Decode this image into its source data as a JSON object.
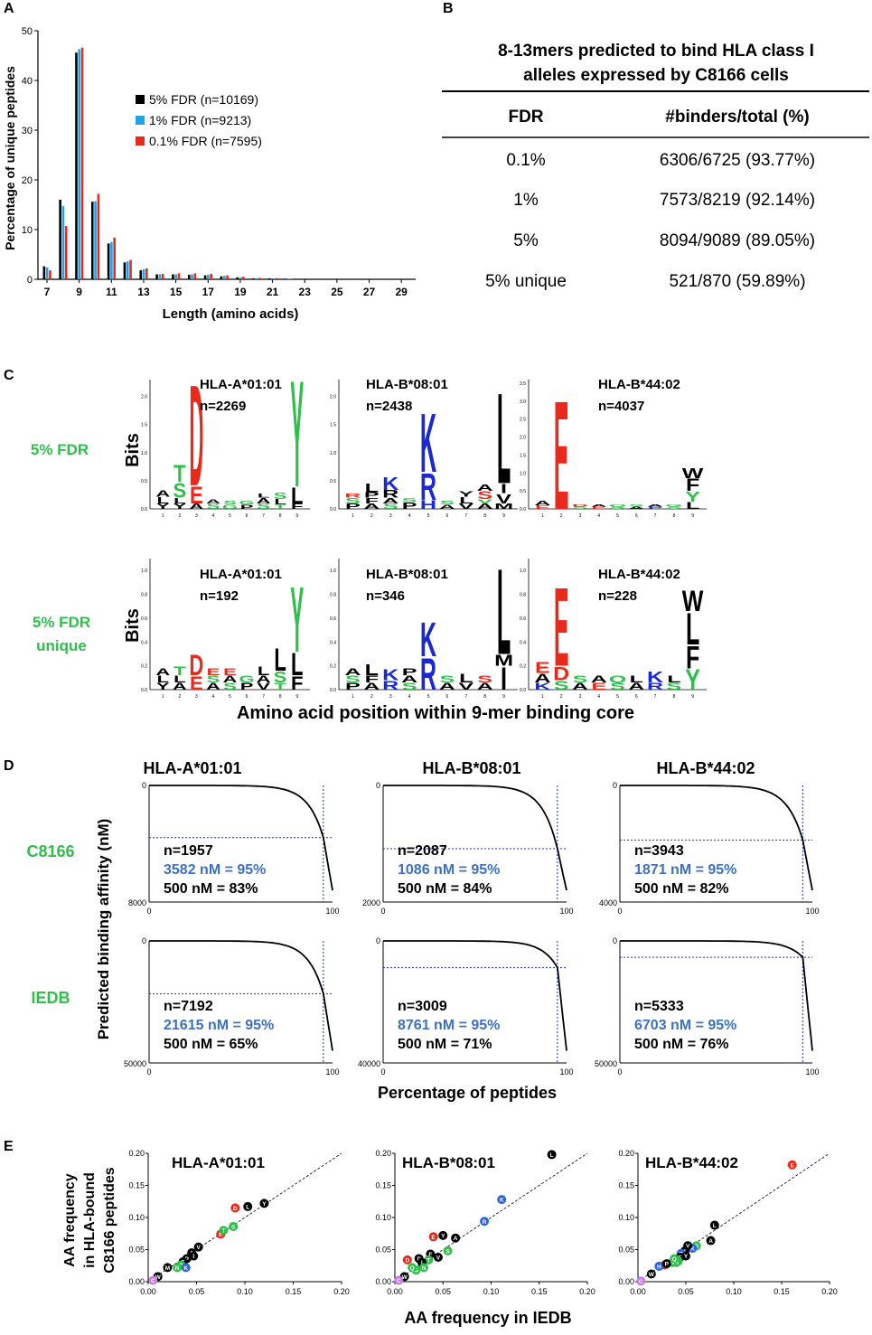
{
  "colors": {
    "series_5": "#000000",
    "series_1": "#1fa3e8",
    "series_01": "#e8291c",
    "green_label": "#2ec04b",
    "blue_text": "#3d6fc8",
    "logo_red": "#e8291c",
    "logo_blue": "#1a29d6",
    "logo_green": "#2ec04b",
    "logo_black": "#000000",
    "guide_blue": "#1a29d6"
  },
  "panels": {
    "A": {
      "letter": "A",
      "chart_data": {
        "type": "bar",
        "xlabel": "Length (amino acids)",
        "ylabel": "Percentage of unique peptides",
        "ylim": [
          0,
          50
        ],
        "yticks": [
          "0",
          "10",
          "20",
          "30",
          "40",
          "50"
        ],
        "xticklabels": [
          "7",
          "9",
          "11",
          "13",
          "15",
          "17",
          "19",
          "21",
          "23",
          "25",
          "27",
          "29"
        ],
        "categories": [
          7,
          8,
          9,
          10,
          11,
          12,
          13,
          14,
          15,
          16,
          17,
          18,
          19,
          20,
          21,
          22
        ],
        "series": [
          {
            "name": "5% FDR (n=10169)",
            "values": [
              2.6,
              16,
              45.6,
              15.6,
              7.2,
              3.4,
              1.8,
              1.0,
              1.0,
              0.9,
              0.8,
              0.6,
              0.4,
              0.2,
              0.2,
              0.1
            ]
          },
          {
            "name": "1% FDR (n=9213)",
            "values": [
              2.4,
              14.7,
              46.3,
              15.7,
              7.5,
              3.6,
              2.0,
              1.0,
              1.0,
              1.0,
              0.9,
              0.7,
              0.4,
              0.2,
              0.2,
              0.1
            ]
          },
          {
            "name": "0.1% FDR (n=7595)",
            "values": [
              1.8,
              10.7,
              46.6,
              17.2,
              8.4,
              3.9,
              2.2,
              1.1,
              1.2,
              1.2,
              1.1,
              0.8,
              0.5,
              0.3,
              0.2,
              0.1
            ]
          }
        ]
      }
    },
    "B": {
      "letter": "B",
      "title_line1": "8-13mers predicted to bind HLA class I",
      "title_line2": "alleles expressed by C8166 cells",
      "col_fdr": "FDR",
      "col_binders": "#binders/total (%)",
      "rows": [
        {
          "fdr": "0.1%",
          "value": "6306/6725 (93.77%)"
        },
        {
          "fdr": "1%",
          "value": "7573/8219 (92.14%)"
        },
        {
          "fdr": "5%",
          "value": "8094/9089 (89.05%)"
        },
        {
          "fdr": "5% unique",
          "value": "521/870 (59.89%)"
        }
      ]
    },
    "C": {
      "letter": "C",
      "row_labels": [
        "5% FDR",
        "5% FDR\nunique"
      ],
      "row_label_1": "5% FDR",
      "row_label_2a": "5% FDR",
      "row_label_2b": "unique",
      "bits": "Bits",
      "xlabel": "Amino acid position within 9-mer binding core",
      "positions": [
        "1",
        "2",
        "3",
        "4",
        "5",
        "6",
        "7",
        "8",
        "9"
      ],
      "logos_top": [
        {
          "allele": "HLA-A*01:01",
          "n": "n=2269",
          "yticks": [
            "0.0",
            "0.5",
            "1.0",
            "1.5",
            "2.0"
          ],
          "ymax": 2.3
        },
        {
          "allele": "HLA-B*08:01",
          "n": "n=2438",
          "yticks": [
            "0.0",
            "0.5",
            "1.0",
            "1.5",
            "2.0"
          ],
          "ymax": 2.3
        },
        {
          "allele": "HLA-B*44:02",
          "n": "n=4037",
          "yticks": [
            "0.0",
            "0.5",
            "1.0",
            "1.5",
            "2.0",
            "2.5",
            "3.0",
            "3.5"
          ],
          "ymax": 3.6
        }
      ],
      "logos_bottom": [
        {
          "allele": "HLA-A*01:01",
          "n": "n=192",
          "yticks": [
            "0.0",
            "0.2",
            "0.4",
            "0.6",
            "0.8",
            "1.0"
          ],
          "ymax": 1.1
        },
        {
          "allele": "HLA-B*08:01",
          "n": "n=346",
          "yticks": [
            "0.0",
            "0.2",
            "0.4",
            "0.6",
            "0.8",
            "1.0"
          ],
          "ymax": 1.1
        },
        {
          "allele": "HLA-B*44:02",
          "n": "n=228",
          "yticks": [
            "0.0",
            "0.2",
            "0.4",
            "0.6",
            "0.8",
            "1.0"
          ],
          "ymax": 1.1
        }
      ]
    },
    "D": {
      "letter": "D",
      "ylabel": "Predicted binding affinity (nM)",
      "xlabel": "Percentage of peptides",
      "row_label_1": "C8166",
      "row_label_2": "IEDB",
      "alleles": [
        "HLA-A*01:01",
        "HLA-B*08:01",
        "HLA-B*44:02"
      ],
      "plots": [
        {
          "row": 0,
          "col": 0,
          "ymax": 8000,
          "ymax_label": "8000",
          "n": "n=1957",
          "p95": "3582 nM = 95%",
          "p500": "500 nM = 83%",
          "threshold_nm": 3582
        },
        {
          "row": 0,
          "col": 1,
          "ymax": 2000,
          "ymax_label": "2000",
          "n": "n=2087",
          "p95": "1086 nM = 95%",
          "p500": "500 nM = 84%",
          "threshold_nm": 1086
        },
        {
          "row": 0,
          "col": 2,
          "ymax": 4000,
          "ymax_label": "4000",
          "n": "n=3943",
          "p95": "1871 nM = 95%",
          "p500": "500 nM = 82%",
          "threshold_nm": 1871
        },
        {
          "row": 1,
          "col": 0,
          "ymax": 50000,
          "ymax_label": "50000",
          "n": "n=7192",
          "p95": "21615 nM = 95%",
          "p500": "500 nM = 65%",
          "threshold_nm": 21615
        },
        {
          "row": 1,
          "col": 1,
          "ymax": 40000,
          "ymax_label": "40000",
          "n": "n=3009",
          "p95": "8761 nM = 95%",
          "p500": "500 nM = 71%",
          "threshold_nm": 8761
        },
        {
          "row": 1,
          "col": 2,
          "ymax": 50000,
          "ymax_label": "50000",
          "n": "n=5333",
          "p95": "6703 nM = 95%",
          "p500": "500 nM = 76%",
          "threshold_nm": 6703
        }
      ],
      "xtick_0": "0",
      "xtick_100": "100",
      "ytick_0": "0"
    },
    "E": {
      "letter": "E",
      "ylabel_1": "AA frequency",
      "ylabel_2": "in HLA-bound",
      "ylabel_3": "C8166 peptides",
      "xlabel": "AA frequency in IEDB",
      "ticks": [
        "0.00",
        "0.05",
        "0.10",
        "0.15",
        "0.20"
      ],
      "chart_data": {
        "type": "scatter",
        "xlim": [
          0,
          0.2
        ],
        "ylim": [
          0,
          0.2
        ],
        "plots": [
          {
            "title": "HLA-A*01:01",
            "points": [
              {
                "aa": "D",
                "x": 0.09,
                "y": 0.115,
                "c": "red"
              },
              {
                "aa": "L",
                "x": 0.103,
                "y": 0.117,
                "c": "black"
              },
              {
                "aa": "Y",
                "x": 0.12,
                "y": 0.122,
                "c": "black"
              },
              {
                "aa": "E",
                "x": 0.075,
                "y": 0.074,
                "c": "red"
              },
              {
                "aa": "T",
                "x": 0.078,
                "y": 0.08,
                "c": "green"
              },
              {
                "aa": "S",
                "x": 0.088,
                "y": 0.086,
                "c": "green"
              },
              {
                "aa": "V",
                "x": 0.052,
                "y": 0.054,
                "c": "black"
              },
              {
                "aa": "A",
                "x": 0.045,
                "y": 0.045,
                "c": "black"
              },
              {
                "aa": "I",
                "x": 0.047,
                "y": 0.04,
                "c": "black"
              },
              {
                "aa": "P",
                "x": 0.04,
                "y": 0.036,
                "c": "black"
              },
              {
                "aa": "F",
                "x": 0.036,
                "y": 0.031,
                "c": "black"
              },
              {
                "aa": "G",
                "x": 0.034,
                "y": 0.026,
                "c": "green"
              },
              {
                "aa": "K",
                "x": 0.039,
                "y": 0.022,
                "c": "blue"
              },
              {
                "aa": "N",
                "x": 0.03,
                "y": 0.022,
                "c": "green"
              },
              {
                "aa": "M",
                "x": 0.02,
                "y": 0.022,
                "c": "black"
              },
              {
                "aa": "W",
                "x": 0.01,
                "y": 0.008,
                "c": "black"
              },
              {
                "aa": "C",
                "x": 0.005,
                "y": 0.002,
                "c": "violet"
              }
            ]
          },
          {
            "title": "HLA-B*08:01",
            "points": [
              {
                "aa": "L",
                "x": 0.163,
                "y": 0.198,
                "c": "black"
              },
              {
                "aa": "K",
                "x": 0.111,
                "y": 0.128,
                "c": "blue"
              },
              {
                "aa": "R",
                "x": 0.093,
                "y": 0.094,
                "c": "blue"
              },
              {
                "aa": "Y",
                "x": 0.05,
                "y": 0.072,
                "c": "black"
              },
              {
                "aa": "E",
                "x": 0.04,
                "y": 0.07,
                "c": "red"
              },
              {
                "aa": "A",
                "x": 0.063,
                "y": 0.068,
                "c": "black"
              },
              {
                "aa": "S",
                "x": 0.055,
                "y": 0.048,
                "c": "green"
              },
              {
                "aa": "F",
                "x": 0.037,
                "y": 0.043,
                "c": "black"
              },
              {
                "aa": "V",
                "x": 0.045,
                "y": 0.038,
                "c": "black"
              },
              {
                "aa": "T",
                "x": 0.035,
                "y": 0.034,
                "c": "green"
              },
              {
                "aa": "D",
                "x": 0.013,
                "y": 0.034,
                "c": "red"
              },
              {
                "aa": "P",
                "x": 0.025,
                "y": 0.036,
                "c": "black"
              },
              {
                "aa": "I",
                "x": 0.028,
                "y": 0.03,
                "c": "black"
              },
              {
                "aa": "N",
                "x": 0.03,
                "y": 0.022,
                "c": "green"
              },
              {
                "aa": "G",
                "x": 0.022,
                "y": 0.018,
                "c": "green"
              },
              {
                "aa": "Q",
                "x": 0.018,
                "y": 0.022,
                "c": "green"
              },
              {
                "aa": "W",
                "x": 0.01,
                "y": 0.008,
                "c": "black"
              },
              {
                "aa": "C",
                "x": 0.004,
                "y": 0.002,
                "c": "violet"
              }
            ]
          },
          {
            "title": "HLA-B*44:02",
            "points": [
              {
                "aa": "E",
                "x": 0.161,
                "y": 0.182,
                "c": "red"
              },
              {
                "aa": "L",
                "x": 0.08,
                "y": 0.088,
                "c": "black"
              },
              {
                "aa": "A",
                "x": 0.076,
                "y": 0.064,
                "c": "black"
              },
              {
                "aa": "S",
                "x": 0.061,
                "y": 0.056,
                "c": "green"
              },
              {
                "aa": "K",
                "x": 0.057,
                "y": 0.052,
                "c": "blue"
              },
              {
                "aa": "V",
                "x": 0.052,
                "y": 0.056,
                "c": "black"
              },
              {
                "aa": "I",
                "x": 0.049,
                "y": 0.048,
                "c": "black"
              },
              {
                "aa": "R",
                "x": 0.045,
                "y": 0.044,
                "c": "blue"
              },
              {
                "aa": "F",
                "x": 0.044,
                "y": 0.038,
                "c": "black"
              },
              {
                "aa": "Y",
                "x": 0.05,
                "y": 0.04,
                "c": "black"
              },
              {
                "aa": "T",
                "x": 0.042,
                "y": 0.032,
                "c": "green"
              },
              {
                "aa": "G",
                "x": 0.04,
                "y": 0.03,
                "c": "green"
              },
              {
                "aa": "N",
                "x": 0.036,
                "y": 0.03,
                "c": "green"
              },
              {
                "aa": "Q",
                "x": 0.038,
                "y": 0.036,
                "c": "green"
              },
              {
                "aa": "D",
                "x": 0.028,
                "y": 0.026,
                "c": "red"
              },
              {
                "aa": "H",
                "x": 0.022,
                "y": 0.024,
                "c": "blue"
              },
              {
                "aa": "P",
                "x": 0.03,
                "y": 0.028,
                "c": "black"
              },
              {
                "aa": "W",
                "x": 0.014,
                "y": 0.012,
                "c": "black"
              },
              {
                "aa": "C",
                "x": 0.003,
                "y": 0.001,
                "c": "violet"
              }
            ]
          }
        ]
      }
    }
  }
}
